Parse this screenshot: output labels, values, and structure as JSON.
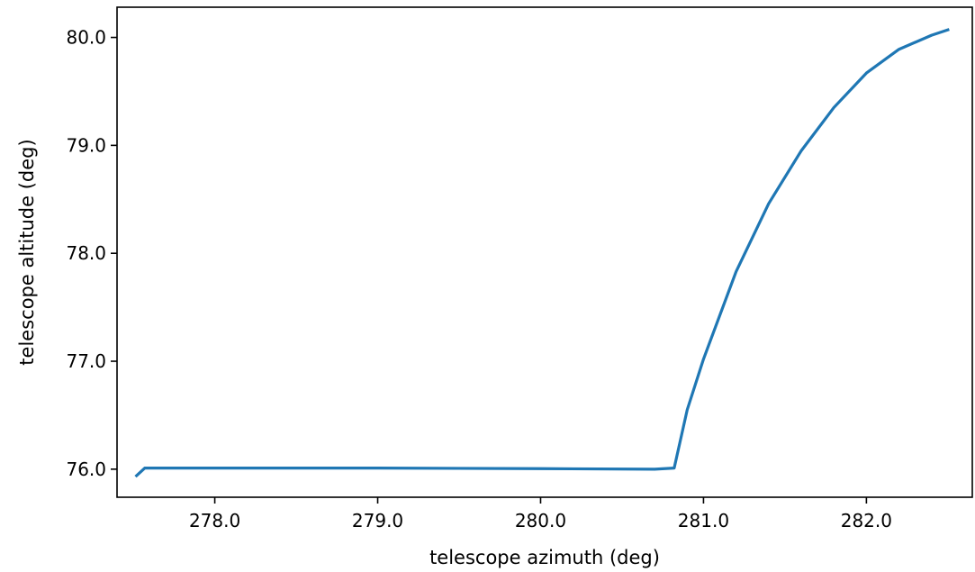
{
  "chart_data": {
    "type": "line",
    "title": "",
    "xlabel": "telescope azimuth (deg)",
    "ylabel": "telescope altitude (deg)",
    "xlim": [
      277.4,
      282.65
    ],
    "ylim": [
      75.74,
      80.28
    ],
    "x_ticks": [
      278.0,
      279.0,
      280.0,
      281.0,
      282.0
    ],
    "x_tick_labels": [
      "278.0",
      "279.0",
      "280.0",
      "281.0",
      "282.0"
    ],
    "y_ticks": [
      76.0,
      77.0,
      78.0,
      79.0,
      80.0
    ],
    "y_tick_labels": [
      "76.0",
      "77.0",
      "78.0",
      "79.0",
      "80.0"
    ],
    "grid": false,
    "series": [
      {
        "color": "#1f77b4",
        "x": [
          277.52,
          277.57,
          278.0,
          279.0,
          280.0,
          280.7,
          280.82,
          280.9,
          281.0,
          281.2,
          281.4,
          281.6,
          281.8,
          282.0,
          282.2,
          282.4,
          282.5
        ],
        "y": [
          75.94,
          76.01,
          76.01,
          76.01,
          76.005,
          76.0,
          76.01,
          76.55,
          77.02,
          77.83,
          78.46,
          78.95,
          79.35,
          79.67,
          79.89,
          80.02,
          80.07
        ]
      }
    ]
  }
}
